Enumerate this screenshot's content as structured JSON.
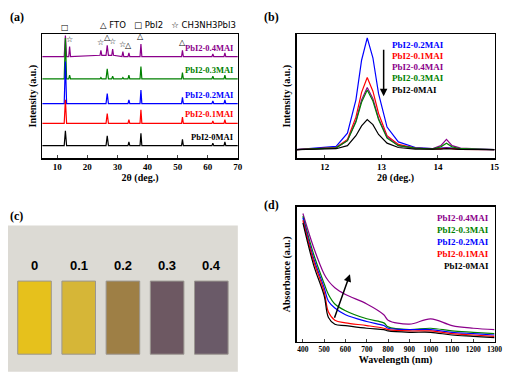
{
  "chart_data": [
    {
      "type": "line",
      "title": "(a)",
      "xlabel": "2θ (deg.)",
      "ylabel": "Intensity (a.u.)",
      "xlim": [
        5,
        70
      ],
      "xticks": [
        10,
        20,
        30,
        40,
        50,
        60,
        70
      ],
      "ylim": [
        0,
        10
      ],
      "tick_labels": "x",
      "x": [
        5,
        12.3,
        12.7,
        13.1,
        13.8,
        14.1,
        14.4,
        24.2,
        24.5,
        24.8,
        26.2,
        26.6,
        27.0,
        28.1,
        28.4,
        28.7,
        31.5,
        31.8,
        32.1,
        33.5,
        33.8,
        34.1,
        37.5,
        37.8,
        38.1,
        51.3,
        51.6,
        51.9,
        61.4,
        61.7,
        62.0,
        65.4,
        65.7,
        66.0,
        70
      ],
      "series": [
        {
          "name": "PbI2-0.4MAI",
          "color": "#8b008b",
          "values": [
            8.2,
            8.2,
            9.9,
            8.2,
            8.2,
            9.0,
            8.2,
            8.3,
            8.7,
            8.3,
            8.3,
            9.1,
            8.3,
            8.3,
            8.8,
            8.3,
            8.2,
            8.6,
            8.2,
            8.2,
            8.5,
            8.2,
            8.2,
            9.2,
            8.2,
            8.2,
            8.7,
            8.2,
            8.2,
            8.4,
            8.2,
            8.2,
            8.5,
            8.2,
            8.2
          ]
        },
        {
          "name": "PbI2-0.3MAI",
          "color": "#008000",
          "values": [
            6.4,
            6.4,
            9.7,
            6.4,
            6.4,
            6.7,
            6.4,
            6.4,
            6.5,
            6.4,
            6.4,
            7.2,
            6.4,
            6.4,
            6.6,
            6.4,
            6.4,
            6.5,
            6.4,
            6.4,
            6.7,
            6.4,
            6.4,
            7.4,
            6.4,
            6.4,
            6.9,
            6.4,
            6.4,
            6.6,
            6.4,
            6.4,
            6.7,
            6.4,
            6.4
          ]
        },
        {
          "name": "PbI2-0.2MAI",
          "color": "#0000ff",
          "values": [
            4.4,
            4.4,
            7.8,
            4.4,
            4.4,
            4.4,
            4.4,
            4.4,
            4.4,
            4.4,
            4.4,
            5.2,
            4.4,
            4.4,
            4.4,
            4.4,
            4.4,
            4.4,
            4.4,
            4.4,
            4.7,
            4.4,
            4.4,
            5.5,
            4.4,
            4.4,
            4.9,
            4.4,
            4.4,
            4.6,
            4.4,
            4.4,
            4.7,
            4.4,
            4.4
          ]
        },
        {
          "name": "PbI2-0.1MAI",
          "color": "#ff0000",
          "values": [
            2.8,
            2.8,
            4.7,
            2.8,
            2.8,
            2.8,
            2.8,
            2.8,
            2.8,
            2.8,
            2.8,
            3.6,
            2.8,
            2.8,
            2.8,
            2.8,
            2.8,
            2.8,
            2.8,
            2.8,
            3.1,
            2.8,
            2.8,
            3.9,
            2.8,
            2.8,
            3.3,
            2.8,
            2.8,
            3.0,
            2.8,
            2.8,
            3.1,
            2.8,
            2.8
          ]
        },
        {
          "name": "PbI2-0MAI",
          "color": "#000000",
          "values": [
            1.0,
            1.0,
            2.2,
            1.0,
            1.0,
            1.0,
            1.0,
            1.0,
            1.0,
            1.0,
            1.0,
            1.8,
            1.0,
            1.0,
            1.0,
            1.0,
            1.0,
            1.0,
            1.0,
            1.0,
            1.3,
            1.0,
            1.0,
            2.0,
            1.0,
            1.0,
            1.5,
            1.0,
            1.0,
            1.2,
            1.0,
            1.0,
            1.3,
            1.0,
            1.0
          ]
        }
      ],
      "annotations": [
        {
          "text": "△ FTO"
        },
        {
          "text": "□ PbI2"
        },
        {
          "text": "☆ CH3NH3PbI3"
        },
        {
          "text": "□",
          "x": 12.7
        },
        {
          "text": "☆",
          "x": 14.1
        },
        {
          "text": "☆",
          "x": 24.5
        },
        {
          "text": "△",
          "x": 26.6
        },
        {
          "text": "☆",
          "x": 28.4
        },
        {
          "text": "☆",
          "x": 31.8
        },
        {
          "text": "△",
          "x": 33.8
        },
        {
          "text": "△",
          "x": 37.8
        },
        {
          "text": "△",
          "x": 51.6
        }
      ]
    },
    {
      "type": "line",
      "title": "(b)",
      "xlabel": "2θ (deg.)",
      "ylabel": "Intensity (a.u.)",
      "xlim": [
        11.5,
        15
      ],
      "xticks": [
        12,
        13,
        14,
        15
      ],
      "ylim": [
        0,
        10
      ],
      "tick_labels": "x",
      "legend": "top",
      "x": [
        11.5,
        12.2,
        12.4,
        12.55,
        12.65,
        12.75,
        12.85,
        12.95,
        13.1,
        13.3,
        13.6,
        13.9,
        14.05,
        14.15,
        14.25,
        14.4,
        15
      ],
      "series": [
        {
          "name": "PbI2-0.2MAI",
          "color": "#0000ff",
          "values": [
            0.67,
            0.94,
            2.0,
            4.7,
            7.9,
            9.7,
            8.1,
            5.2,
            2.5,
            1.3,
            0.85,
            0.75,
            0.8,
            0.85,
            0.8,
            0.72,
            0.67
          ]
        },
        {
          "name": "PbI2-0.1MAI",
          "color": "#ff0000",
          "values": [
            0.67,
            0.85,
            1.5,
            3.3,
            5.3,
            6.5,
            5.4,
            3.6,
            1.8,
            1.1,
            0.8,
            0.72,
            0.75,
            0.8,
            0.75,
            0.7,
            0.67
          ]
        },
        {
          "name": "PbI2-0.4MAI",
          "color": "#8b008b",
          "values": [
            0.67,
            0.82,
            1.4,
            3.0,
            4.7,
            5.7,
            4.8,
            3.2,
            1.7,
            1.0,
            0.8,
            0.75,
            1.0,
            1.5,
            1.0,
            0.8,
            0.67
          ]
        },
        {
          "name": "PbI2-0.3MAI",
          "color": "#008000",
          "values": [
            0.67,
            0.82,
            1.4,
            2.9,
            4.5,
            5.5,
            4.6,
            3.1,
            1.6,
            1.0,
            0.8,
            0.72,
            0.9,
            1.2,
            0.9,
            0.75,
            0.67
          ]
        },
        {
          "name": "PbI2-0MAI",
          "color": "#000000",
          "values": [
            0.67,
            0.75,
            1.0,
            1.8,
            2.6,
            3.1,
            2.7,
            1.9,
            1.2,
            0.85,
            0.72,
            0.7,
            0.72,
            0.75,
            0.72,
            0.7,
            0.67
          ]
        }
      ]
    },
    {
      "type": "image",
      "title": "(c)",
      "categories": [
        "0",
        "0.1",
        "0.2",
        "0.3",
        "0.4"
      ],
      "colors": [
        "#e6c11c",
        "#d6b637",
        "#9e7f45",
        "#6d5862",
        "#6a5a68"
      ]
    },
    {
      "type": "line",
      "title": "(d)",
      "xlabel": "Wavelength (nm)",
      "ylabel": "Absorbance (a.u.)",
      "xlim": [
        370,
        1300
      ],
      "xticks": [
        400,
        500,
        600,
        700,
        800,
        900,
        1000,
        1100,
        1200,
        1300
      ],
      "ylim": [
        0,
        10
      ],
      "tick_labels": "x",
      "legend": "top right",
      "line_style": "smooth",
      "x": [
        400,
        450,
        500,
        520,
        550,
        600,
        700,
        780,
        800,
        900,
        1000,
        1100,
        1200,
        1300
      ],
      "series": [
        {
          "name": "PbI2-0.4MAI",
          "color": "#8b008b",
          "values": [
            9.5,
            7.0,
            5.0,
            4.5,
            4.0,
            3.5,
            2.8,
            2.0,
            1.6,
            1.3,
            1.7,
            1.2,
            1.0,
            0.9
          ]
        },
        {
          "name": "PbI2-0.3MAI",
          "color": "#008000",
          "values": [
            9.3,
            6.5,
            4.3,
            3.5,
            2.8,
            2.3,
            1.7,
            1.4,
            1.1,
            0.9,
            1.0,
            0.8,
            0.7,
            0.6
          ]
        },
        {
          "name": "PbI2-0.2MAI",
          "color": "#0000ff",
          "values": [
            9.2,
            6.2,
            4.0,
            3.0,
            2.5,
            2.0,
            1.5,
            1.2,
            1.0,
            0.9,
            0.9,
            0.7,
            0.6,
            0.5
          ]
        },
        {
          "name": "PbI2-0.1MAI",
          "color": "#ff0000",
          "values": [
            9.0,
            6.0,
            3.7,
            2.2,
            1.6,
            1.4,
            1.2,
            1.0,
            0.9,
            0.8,
            0.8,
            0.6,
            0.5,
            0.4
          ]
        },
        {
          "name": "PbI2-0MAI",
          "color": "#000000",
          "values": [
            8.8,
            5.7,
            3.4,
            1.8,
            1.3,
            1.2,
            1.0,
            0.9,
            0.8,
            0.7,
            0.7,
            0.5,
            0.4,
            0.3
          ]
        }
      ]
    }
  ]
}
